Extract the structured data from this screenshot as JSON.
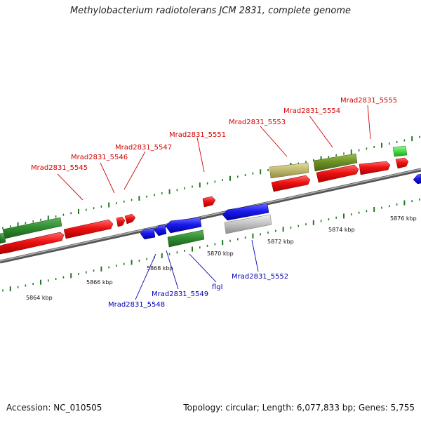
{
  "title": "Methylobacterium radiotolerans JCM 2831, complete genome",
  "footer": {
    "accession": "Accession: NC_010505",
    "topology": "Topology: circular; Length: 6,077,833 bp; Genes: 5,755"
  },
  "ticks": [
    "5864 kbp",
    "5866 kbp",
    "5868 kbp",
    "5870 kbp",
    "5872 kbp",
    "5874 kbp",
    "5876 kbp"
  ],
  "forward_labels": [
    "Mrad2831_5545",
    "Mrad2831_5546",
    "Mrad2831_5547",
    "Mrad2831_5551",
    "Mrad2831_5553",
    "Mrad2831_5554",
    "Mrad2831_5555"
  ],
  "reverse_labels": [
    "Mrad2831_5548",
    "Mrad2831_5549",
    "flgI",
    "Mrad2831_5552"
  ],
  "colors": {
    "cds_forward": "#ee1111",
    "cds_reverse": "#1a1aee",
    "feature_green": "#2e8b2e",
    "feature_olive": "#6b8e23",
    "feature_khaki": "#bdb76b",
    "feature_gray": "#bbbbbb",
    "feature_lightgreen": "#44dd44",
    "backbone": "#888888",
    "tick": "#1f7a1f"
  }
}
